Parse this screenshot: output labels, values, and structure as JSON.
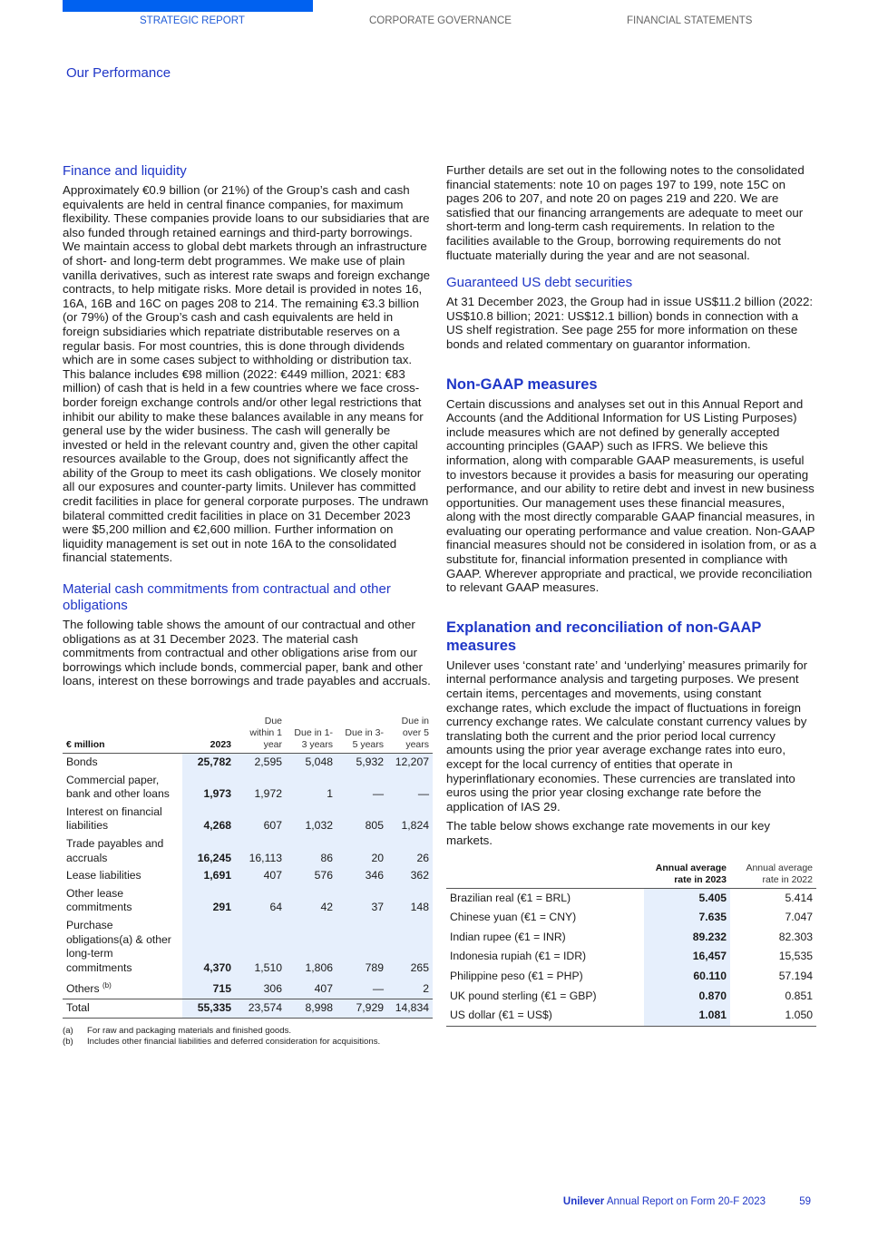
{
  "nav": {
    "items": [
      "STRATEGIC REPORT",
      "CORPORATE GOVERNANCE",
      "FINANCIAL STATEMENTS"
    ],
    "active": "STRATEGIC REPORT",
    "accent": "#0061f0"
  },
  "section_title": "Our Performance",
  "left": {
    "h_finance": "Finance and liquidity",
    "p_finance": "Approximately €0.9 billion (or 21%) of the Group’s cash and cash equivalents are held in central finance companies, for maximum flexibility. These companies provide loans to our subsidiaries that are also funded through retained earnings and third-party borrowings. We maintain access to global debt markets through an infrastructure of short- and long-term debt programmes. We make use of plain vanilla derivatives, such as interest rate swaps and foreign exchange contracts, to help mitigate risks. More detail is provided in notes 16, 16A, 16B and 16C on pages 208 to 214. The remaining €3.3 billion (or 79%) of the Group’s cash and cash equivalents are held in foreign subsidiaries which repatriate distributable reserves on a regular basis. For most countries, this is done through dividends which are in some cases subject to withholding or distribution tax. This balance includes €98 million (2022: €449 million, 2021: €83 million) of cash that is held in a few countries where we face cross-border foreign exchange controls and/or other legal restrictions that inhibit our ability to make these balances available in any means for general use by the wider business. The cash will generally be invested or held in the relevant country and, given the other capital resources available to the Group, does not significantly affect the ability of the Group to meet its cash obligations. We closely monitor all our exposures and counter-party limits. Unilever has committed credit facilities in place for general corporate purposes. The undrawn bilateral committed credit facilities in place on 31 December 2023 were $5,200 million and €2,600 million. Further information on liquidity management is set out in note 16A to the consolidated financial statements.",
    "h_material": "Material cash commitments from contractual and other obligations",
    "p_material": "The following table shows the amount of our contractual and other obligations as at 31 December 2023. The material cash commitments from contractual and other obligations arise from our borrowings which include bonds, commercial paper, bank and other loans, interest on these borrowings and trade payables and accruals.",
    "table": {
      "headers": [
        "€ million",
        "2023",
        "Due within 1 year",
        "Due in 1-3 years",
        "Due in 3-5 years",
        "Due in over 5 years"
      ],
      "rows": [
        [
          "Bonds",
          "25,782",
          "2,595",
          "5,048",
          "5,932",
          "12,207"
        ],
        [
          "Commercial paper, bank and other loans",
          "1,973",
          "1,972",
          "1",
          "—",
          "—"
        ],
        [
          "Interest on financial liabilities",
          "4,268",
          "607",
          "1,032",
          "805",
          "1,824"
        ],
        [
          "Trade payables and accruals",
          "16,245",
          "16,113",
          "86",
          "20",
          "26"
        ],
        [
          "Lease liabilities",
          "1,691",
          "407",
          "576",
          "346",
          "362"
        ],
        [
          "Other lease commitments",
          "291",
          "64",
          "42",
          "37",
          "148"
        ],
        [
          "Purchase obligations(a) & other long-term commitments",
          "4,370",
          "1,510",
          "1,806",
          "789",
          "265"
        ],
        [
          "Others",
          "715",
          "306",
          "407",
          "—",
          "2"
        ]
      ],
      "others_sup": "(b)",
      "total": [
        "Total",
        "55,335",
        "23,574",
        "8,998",
        "7,929",
        "14,834"
      ]
    },
    "notes": [
      [
        "(a)",
        "For raw and packaging materials and finished goods."
      ],
      [
        "(b)",
        "Includes other financial liabilities and deferred consideration for acquisitions."
      ]
    ]
  },
  "right": {
    "p_further": "Further details are set out in the following notes to the consolidated financial statements: note 10 on pages 197 to 199, note 15C on pages 206 to 207, and note 20 on pages 219 and 220. We are satisfied that our financing arrangements are adequate to meet our short-term and long-term cash requirements. In relation to the facilities available to the Group, borrowing requirements do not fluctuate materially during the year and are not seasonal.",
    "h_guaranteed": "Guaranteed US debt securities",
    "p_guaranteed": "At 31 December 2023, the Group had in issue US$11.2 billion (2022: US$10.8 billion; 2021: US$12.1 billion) bonds in connection with a US shelf registration. See page 255 for more information on these bonds and related commentary on guarantor information.",
    "h_nongaap": "Non-GAAP measures",
    "p_nongaap": "Certain discussions and analyses set out in this Annual Report and Accounts (and the Additional Information for US Listing Purposes) include measures which are not defined by generally accepted accounting principles (GAAP) such as IFRS. We believe this information, along with comparable GAAP measurements, is useful to investors because it provides a basis for measuring our operating performance, and our ability to retire debt and invest in new business opportunities. Our management uses these financial measures, along with the most directly comparable GAAP financial measures, in evaluating our operating performance and value creation. Non-GAAP financial measures should not be considered in isolation from, or as a substitute for, financial information presented in compliance with GAAP. Wherever appropriate and practical, we provide reconciliation to relevant GAAP measures.",
    "h_explanation": "Explanation and reconciliation of non-GAAP measures",
    "p_explanation": "Unilever uses ‘constant rate’ and ‘underlying’ measures primarily for internal performance analysis and targeting purposes. We present certain items, percentages and movements, using constant exchange rates, which exclude the impact of fluctuations in foreign currency exchange rates. We calculate constant currency values by translating both the current and the prior period local currency amounts using the prior year average exchange rates into euro, except for the local currency of entities that operate in hyperinflationary economies. These currencies are translated into euros using the prior year closing exchange rate before the application of IAS 29.",
    "p_table_intro": "The table below shows exchange rate movements in our key markets.",
    "fx": {
      "headers": [
        "",
        "Annual average rate in 2023",
        "Annual average rate in 2022"
      ],
      "rows": [
        [
          "Brazilian real (€1 = BRL)",
          "5.405",
          "5.414"
        ],
        [
          "Chinese yuan (€1 = CNY)",
          "7.635",
          "7.047"
        ],
        [
          "Indian rupee (€1 = INR)",
          "89.232",
          "82.303"
        ],
        [
          "Indonesia rupiah (€1 = IDR)",
          "16,457",
          "15,535"
        ],
        [
          "Philippine peso (€1 = PHP)",
          "60.110",
          "57.194"
        ],
        [
          "UK pound sterling (€1 = GBP)",
          "0.870",
          "0.851"
        ],
        [
          "US dollar (€1 = US$)",
          "1.081",
          "1.050"
        ]
      ]
    }
  },
  "footer": {
    "brand": "Unilever",
    "title": "Annual Report on Form 20-F 2023",
    "page": "59"
  }
}
